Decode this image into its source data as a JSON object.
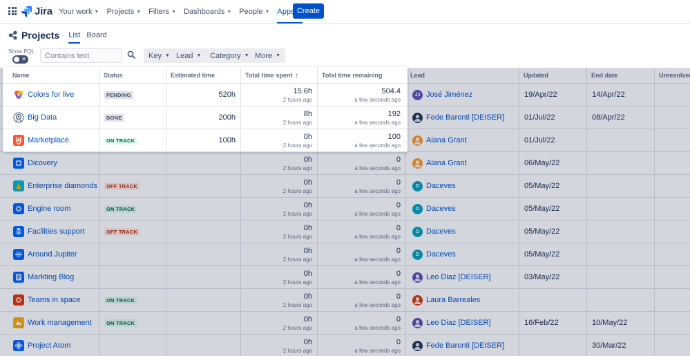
{
  "app": {
    "name": "Jira",
    "nav": [
      {
        "label": "Your work",
        "active": false
      },
      {
        "label": "Projects",
        "active": false
      },
      {
        "label": "Filters",
        "active": false
      },
      {
        "label": "Dashboards",
        "active": false
      },
      {
        "label": "People",
        "active": false
      },
      {
        "label": "Apps",
        "active": true
      }
    ],
    "create_label": "Create"
  },
  "page": {
    "title": "Projects",
    "tabs": [
      {
        "label": "List",
        "active": true
      },
      {
        "label": "Board",
        "active": false
      }
    ]
  },
  "filters": {
    "show_pql_label": "Show PQL",
    "search_placeholder": "Contains text",
    "buttons": [
      "Key",
      "Lead",
      "Category",
      "More"
    ]
  },
  "table": {
    "headers": {
      "name": "Name",
      "status": "Status",
      "estimated": "Estimated time",
      "spent": "Total time spent",
      "remaining": "Total time remaining",
      "lead": "Lead",
      "updated": "Updated",
      "end": "End date",
      "unresolved": "Unresolved"
    },
    "rows": [
      {
        "name": "Colors for live",
        "icon": "colors-icon",
        "status": "PENDING",
        "status_type": "pending",
        "estimated": "520h",
        "spent": "15.6h",
        "spent_sub": "2 hours ago",
        "remaining": "504.4",
        "remaining_sub": "a few seconds ago",
        "lead": "José Jiménez",
        "avatar_color": "#6554c0",
        "avatar_text": "JJ",
        "updated": "19/Apr/22",
        "end": "14/Apr/22"
      },
      {
        "name": "Big Data",
        "icon": "bigdata-icon",
        "status": "DONE",
        "status_type": "done",
        "estimated": "200h",
        "spent": "8h",
        "spent_sub": "2 hours ago",
        "remaining": "192",
        "remaining_sub": "a few seconds ago",
        "lead": "Fede Baronti [DEISER]",
        "avatar_color": "#253858",
        "avatar_text": "",
        "updated": "01/Jul/22",
        "end": "08/Apr/22"
      },
      {
        "name": "Marketplace",
        "icon": "marketplace-icon",
        "status": "ON TRACK",
        "status_type": "track",
        "estimated": "100h",
        "spent": "0h",
        "spent_sub": "2 hours ago",
        "remaining": "100",
        "remaining_sub": "a few seconds ago",
        "lead": "Alana Grant",
        "avatar_color": "#ff991f",
        "avatar_text": "",
        "updated": "01/Jul/22",
        "end": ""
      },
      {
        "name": "Dicovery",
        "icon": "discovery-icon",
        "status": "",
        "status_type": "",
        "estimated": "",
        "spent": "0h",
        "spent_sub": "2 hours ago",
        "remaining": "0",
        "remaining_sub": "a few seconds ago",
        "lead": "Alana Grant",
        "avatar_color": "#ff991f",
        "avatar_text": "",
        "updated": "06/May/22",
        "end": ""
      },
      {
        "name": "Enterprise diamonds",
        "icon": "diamonds-icon",
        "status": "OFF TRACK",
        "status_type": "off",
        "estimated": "",
        "spent": "0h",
        "spent_sub": "2 hours ago",
        "remaining": "0",
        "remaining_sub": "a few seconds ago",
        "lead": "Daceves",
        "avatar_color": "#00a3bf",
        "avatar_text": "D",
        "updated": "05/May/22",
        "end": ""
      },
      {
        "name": "Engine room",
        "icon": "engine-icon",
        "status": "ON TRACK",
        "status_type": "track",
        "estimated": "",
        "spent": "0h",
        "spent_sub": "2 hours ago",
        "remaining": "0",
        "remaining_sub": "a few seconds ago",
        "lead": "Daceves",
        "avatar_color": "#00a3bf",
        "avatar_text": "D",
        "updated": "05/May/22",
        "end": ""
      },
      {
        "name": "Facilities support",
        "icon": "facilities-icon",
        "status": "OFF TRACK",
        "status_type": "off",
        "estimated": "",
        "spent": "0h",
        "spent_sub": "2 hours ago",
        "remaining": "0",
        "remaining_sub": "a few seconds ago",
        "lead": "Daceves",
        "avatar_color": "#00a3bf",
        "avatar_text": "D",
        "updated": "05/May/22",
        "end": ""
      },
      {
        "name": "Around Jupiter",
        "icon": "jupiter-icon",
        "status": "",
        "status_type": "",
        "estimated": "",
        "spent": "0h",
        "spent_sub": "2 hours ago",
        "remaining": "0",
        "remaining_sub": "a few seconds ago",
        "lead": "Daceves",
        "avatar_color": "#00a3bf",
        "avatar_text": "D",
        "updated": "05/May/22",
        "end": ""
      },
      {
        "name": "Markting Blog",
        "icon": "blog-icon",
        "status": "",
        "status_type": "",
        "estimated": "",
        "spent": "0h",
        "spent_sub": "2 hours ago",
        "remaining": "0",
        "remaining_sub": "a few seconds ago",
        "lead": "Leo Diaz [DEISER]",
        "avatar_color": "#5e4db2",
        "avatar_text": "",
        "updated": "03/May/22",
        "end": ""
      },
      {
        "name": "Teams in space",
        "icon": "teams-icon",
        "status": "ON TRACK",
        "status_type": "track",
        "estimated": "",
        "spent": "0h",
        "spent_sub": "2 hours ago",
        "remaining": "0",
        "remaining_sub": "a few seconds ago",
        "lead": "Laura Barreales",
        "avatar_color": "#de350b",
        "avatar_text": "",
        "updated": "",
        "end": ""
      },
      {
        "name": "Work management",
        "icon": "work-icon",
        "status": "ON TRACK",
        "status_type": "track",
        "estimated": "",
        "spent": "0h",
        "spent_sub": "2 hours ago",
        "remaining": "0",
        "remaining_sub": "a few seconds ago",
        "lead": "Leo Diaz [DEISER]",
        "avatar_color": "#5e4db2",
        "avatar_text": "",
        "updated": "16/Feb/22",
        "end": "10/May/22"
      },
      {
        "name": "Project Atom",
        "icon": "atom-icon",
        "status": "",
        "status_type": "",
        "estimated": "",
        "spent": "0h",
        "spent_sub": "2 hours ago",
        "remaining": "0",
        "remaining_sub": "a few seconds ago",
        "lead": "Fede Baronti [DEISER]",
        "avatar_color": "#253858",
        "avatar_text": "",
        "updated": "",
        "end": "30/Mar/22"
      }
    ]
  }
}
